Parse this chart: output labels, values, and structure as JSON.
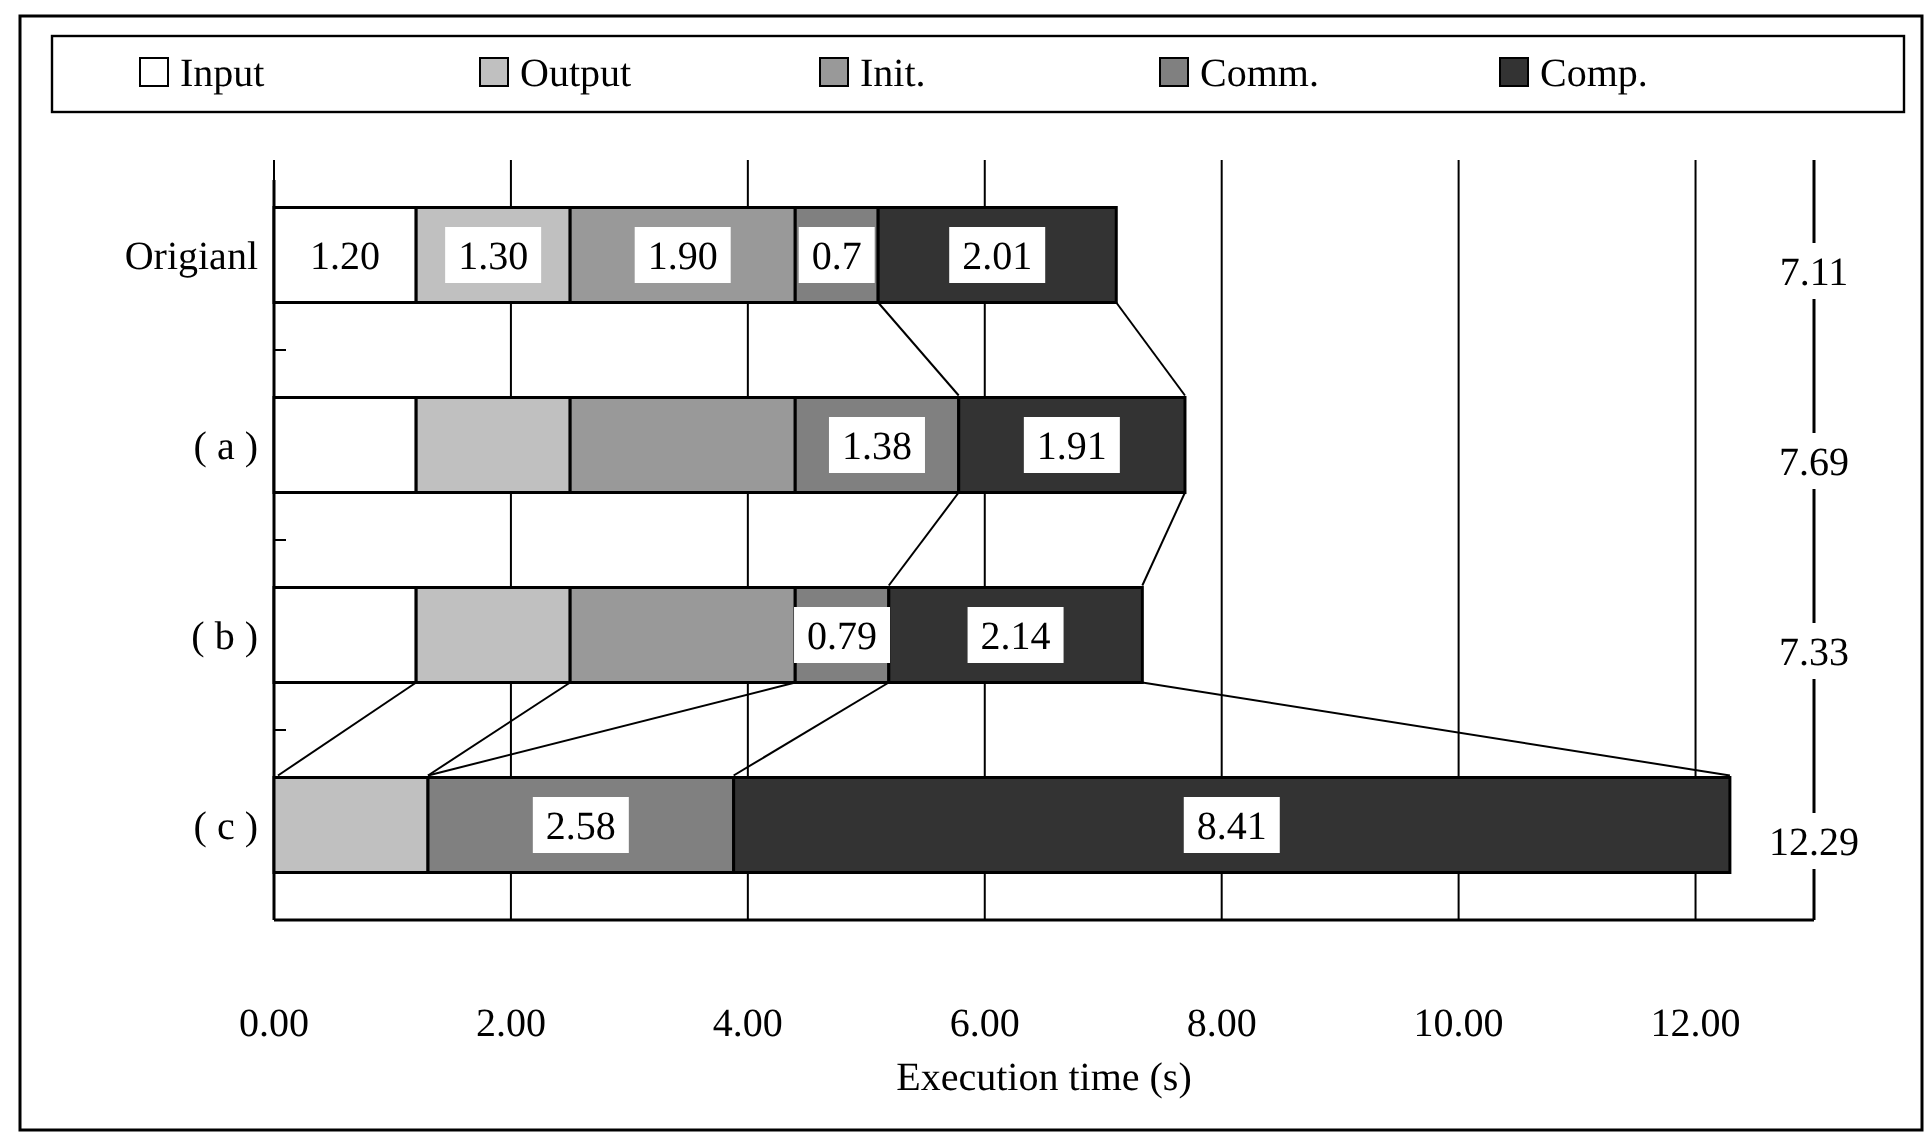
{
  "chart_data": {
    "type": "bar",
    "orientation": "horizontal",
    "stacked": true,
    "categories": [
      "Origianl",
      "( a )",
      "( b )",
      "( c )"
    ],
    "series": [
      {
        "name": "Input",
        "color": "#ffffff",
        "values": [
          1.2,
          1.2,
          1.2,
          null
        ],
        "value_labels": [
          "1.20",
          null,
          null,
          null
        ]
      },
      {
        "name": "Output",
        "color": "#c0c0c0",
        "values": [
          1.3,
          1.3,
          1.3,
          1.3
        ],
        "value_labels": [
          "1.30",
          null,
          null,
          null
        ]
      },
      {
        "name": "Init.",
        "color": "#999999",
        "values": [
          1.9,
          1.9,
          1.9,
          null
        ],
        "value_labels": [
          "1.90",
          null,
          null,
          null
        ]
      },
      {
        "name": "Comm.",
        "color": "#808080",
        "values": [
          0.7,
          1.38,
          0.79,
          2.58
        ],
        "value_labels": [
          "0.7",
          "1.38",
          "0.79",
          "2.58"
        ]
      },
      {
        "name": "Comp.",
        "color": "#333333",
        "values": [
          2.01,
          1.91,
          2.14,
          8.41
        ],
        "value_labels": [
          "2.01",
          "1.91",
          "2.14",
          "8.41"
        ]
      }
    ],
    "annotations": [
      "7.11",
      "7.69",
      "7.33",
      "12.29"
    ],
    "xlim": [
      0,
      13
    ],
    "xticks": [
      {
        "value": 0,
        "label": "0.00"
      },
      {
        "value": 2,
        "label": "2.00"
      },
      {
        "value": 4,
        "label": "4.00"
      },
      {
        "value": 6,
        "label": "6.00"
      },
      {
        "value": 8,
        "label": "8.00"
      },
      {
        "value": 10,
        "label": "10.00"
      },
      {
        "value": 12,
        "label": "12.00"
      }
    ],
    "xlabel": "Execution time (s)",
    "grid": "x",
    "legend": "top"
  }
}
